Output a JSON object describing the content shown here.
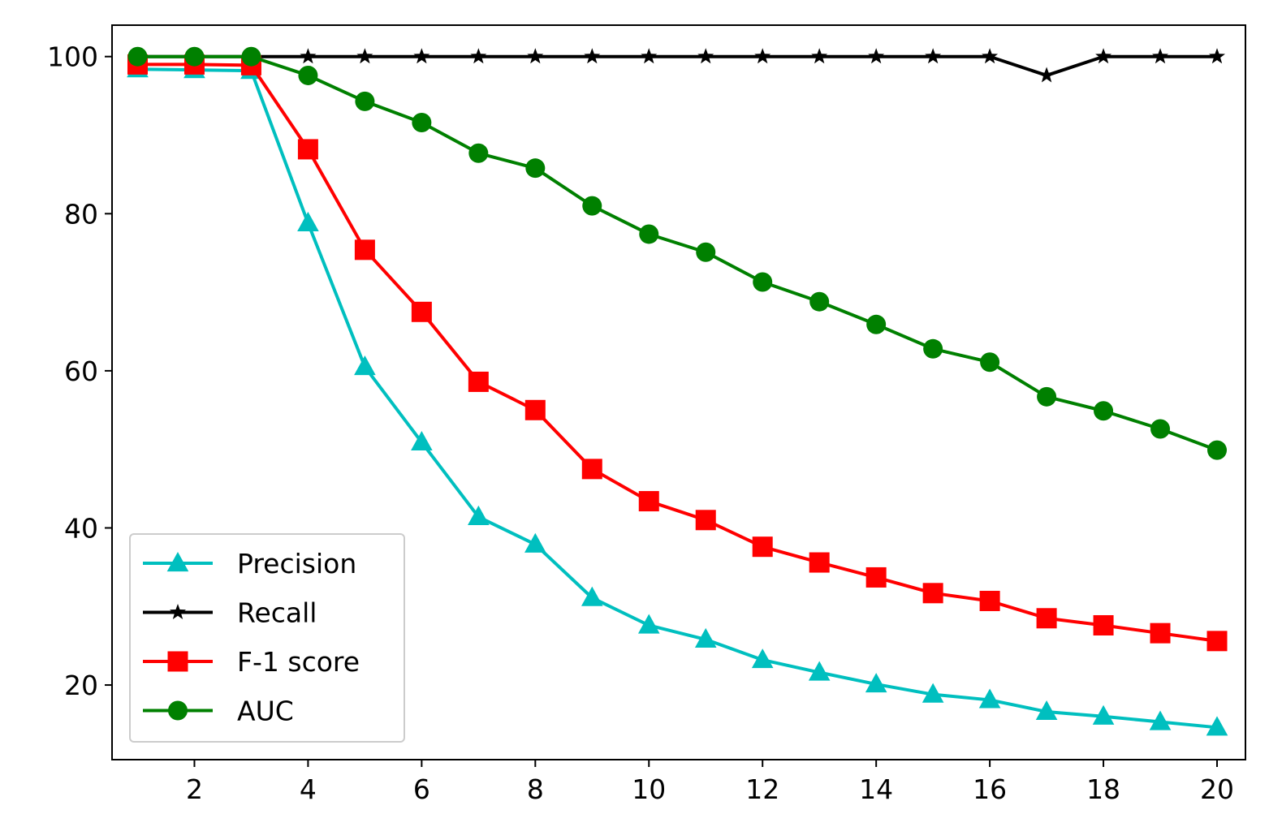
{
  "chart_data": {
    "type": "line",
    "title": "",
    "xlabel": "",
    "ylabel": "",
    "xlim": [
      0.55,
      20.5
    ],
    "ylim": [
      10.5,
      104
    ],
    "x": [
      1,
      2,
      3,
      4,
      5,
      6,
      7,
      8,
      9,
      10,
      11,
      12,
      13,
      14,
      15,
      16,
      17,
      18,
      19,
      20
    ],
    "xticks": [
      2,
      4,
      6,
      8,
      10,
      12,
      14,
      16,
      18,
      20
    ],
    "yticks": [
      20,
      40,
      60,
      80,
      100
    ],
    "grid": false,
    "legend": "lower-left",
    "series": [
      {
        "name": "Precision",
        "color": "#00bfbf",
        "marker": "triangle",
        "values": [
          98.4,
          98.3,
          98.2,
          78.8,
          60.5,
          50.9,
          41.4,
          37.9,
          31.1,
          27.6,
          25.8,
          23.2,
          21.6,
          20.1,
          18.8,
          18.1,
          16.6,
          16.0,
          15.3,
          14.6
        ]
      },
      {
        "name": "Recall",
        "color": "#000000",
        "marker": "star",
        "values": [
          100,
          100,
          100,
          100,
          100,
          100,
          100,
          100,
          100,
          100,
          100,
          100,
          100,
          100,
          100,
          100,
          97.6,
          100,
          100,
          100
        ]
      },
      {
        "name": "F-1 score",
        "color": "#ff0000",
        "marker": "square",
        "values": [
          99.0,
          99.0,
          98.9,
          88.2,
          75.4,
          67.5,
          58.6,
          55.0,
          47.5,
          43.4,
          41.0,
          37.6,
          35.6,
          33.7,
          31.7,
          30.7,
          28.5,
          27.6,
          26.6,
          25.6
        ]
      },
      {
        "name": "AUC",
        "color": "#008000",
        "marker": "circle",
        "values": [
          100,
          100,
          100,
          97.6,
          94.3,
          91.6,
          87.7,
          85.8,
          81.0,
          77.4,
          75.1,
          71.3,
          68.8,
          65.9,
          62.8,
          61.1,
          56.7,
          54.9,
          52.6,
          49.9
        ]
      }
    ]
  }
}
